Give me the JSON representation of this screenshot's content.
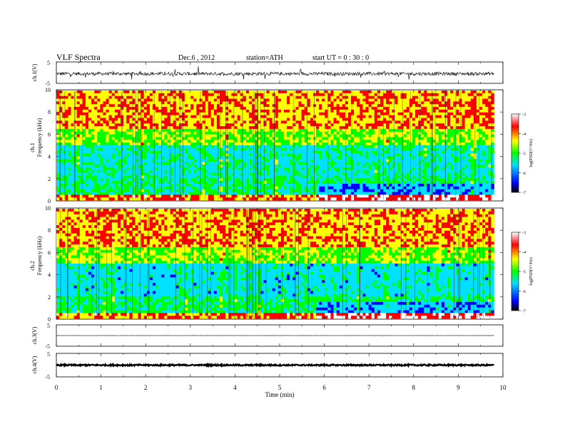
{
  "header": {
    "title": "VLF  Spectra",
    "date": "Dec.6  , 2012",
    "station": "station=ATH",
    "start": "start  UT  =   0 : 30 : 0"
  },
  "chart_data": [
    {
      "type": "line",
      "panel": "ch1-waveform",
      "ylabel": "ch.1(V)",
      "yticks": [
        "5",
        "-5"
      ],
      "ylim": [
        -5,
        5
      ],
      "xlim": [
        0,
        10
      ],
      "description_values": {
        "baseline": -0.5,
        "noise_amplitude": 0.8,
        "data_end_min": 9.8
      }
    },
    {
      "type": "heatmap",
      "panel": "ch1-spectrogram",
      "ylabel": [
        "ch.1",
        "Frequency  (kHz)"
      ],
      "yticks": [
        "10",
        "8",
        "6",
        "4",
        "2",
        "0"
      ],
      "ylim": [
        0,
        10
      ],
      "xlim": [
        0,
        10
      ],
      "colorbar": {
        "label": "log(PSD(V²/Hz)",
        "ticks": [
          "-3",
          "-4",
          "-5",
          "-6",
          "-7"
        ],
        "range": [
          -7,
          -3
        ]
      }
    },
    {
      "type": "heatmap",
      "panel": "ch2-spectrogram",
      "ylabel": [
        "ch.2",
        "Frequency  (kHz)"
      ],
      "yticks": [
        "10",
        "8",
        "6",
        "4",
        "2",
        "0"
      ],
      "ylim": [
        0,
        10
      ],
      "xlim": [
        0,
        10
      ],
      "colorbar": {
        "label": "log(PSD(V²/Hz)",
        "ticks": [
          "-3",
          "-4",
          "-5",
          "-6",
          "-7"
        ],
        "range": [
          -7,
          -3
        ]
      }
    },
    {
      "type": "line",
      "panel": "ch3-waveform",
      "ylabel": "ch.3(V)",
      "yticks": [
        "5",
        "-5"
      ],
      "ylim": [
        -5,
        5
      ],
      "xlim": [
        0,
        10
      ],
      "description_values": {
        "baseline": 0,
        "noise_amplitude": 0.05,
        "data_end_min": 9.8
      }
    },
    {
      "type": "line",
      "panel": "ch4-waveform",
      "ylabel": "ch.4(V)",
      "yticks": [
        "5",
        "-5"
      ],
      "ylim": [
        -5,
        5
      ],
      "xlim": [
        0,
        10
      ],
      "description_values": {
        "baseline": 0,
        "noise_amplitude": 0.3,
        "data_end_min": 9.8
      }
    }
  ],
  "xaxis": {
    "label": "Time  (min)",
    "ticks": [
      "0",
      "1",
      "2",
      "3",
      "4",
      "5",
      "6",
      "7",
      "8",
      "9",
      "10"
    ]
  },
  "colors": {
    "spectrum": [
      "#000000",
      "#0000ff",
      "#00e0ff",
      "#00ff00",
      "#ffff00",
      "#ff0000",
      "#ffffff"
    ]
  }
}
